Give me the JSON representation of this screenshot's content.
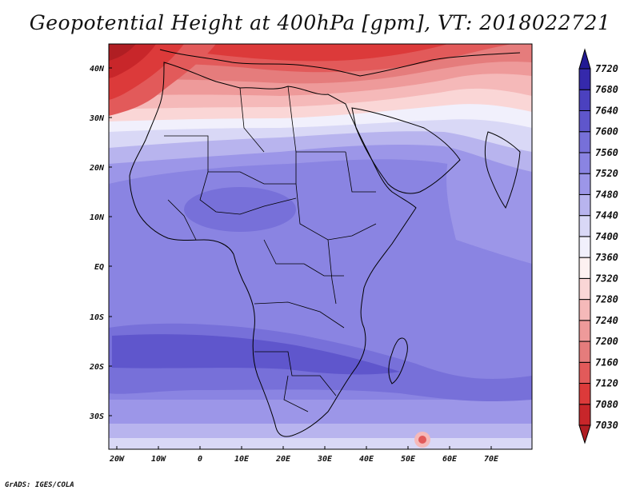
{
  "title": "Geopotential Height at 400hPa [gpm], VT: 2018022721",
  "credit": "GrADS: IGES/COLA",
  "lat_labels": [
    "40N",
    "30N",
    "20N",
    "10N",
    "EQ",
    "10S",
    "20S",
    "30S"
  ],
  "lon_labels": [
    "20W",
    "10W",
    "0",
    "10E",
    "20E",
    "30E",
    "40E",
    "50E",
    "60E",
    "70E"
  ],
  "colorbar": {
    "levels": [
      "7030",
      "7080",
      "7120",
      "7160",
      "7200",
      "7240",
      "7280",
      "7320",
      "7360",
      "7400",
      "7440",
      "7480",
      "7520",
      "7560",
      "7600",
      "7640",
      "7680",
      "7720"
    ],
    "colors": [
      "#b01e23",
      "#c8262a",
      "#dc3a3a",
      "#e25a5a",
      "#e57c7c",
      "#ee9a9a",
      "#f5b9b9",
      "#fad6d6",
      "#fdf1f1",
      "#f1f0fc",
      "#d9d8f6",
      "#b8b4ee",
      "#9c96e8",
      "#8a84e2",
      "#7770d9",
      "#5f56cc",
      "#4b41bf",
      "#3529ab",
      "#221a94"
    ]
  }
}
